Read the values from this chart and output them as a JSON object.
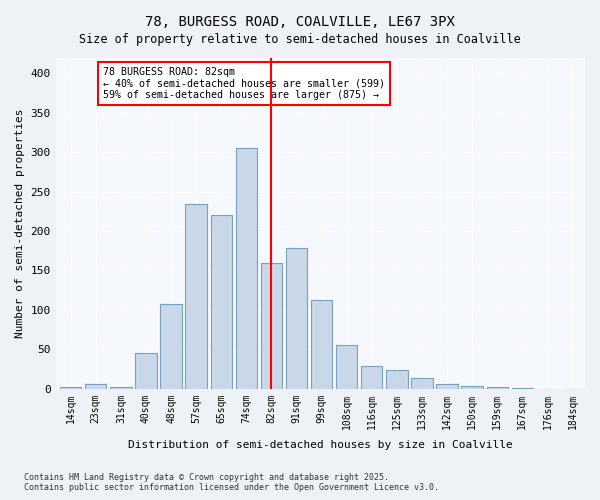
{
  "title1": "78, BURGESS ROAD, COALVILLE, LE67 3PX",
  "title2": "Size of property relative to semi-detached houses in Coalville",
  "xlabel": "Distribution of semi-detached houses by size in Coalville",
  "ylabel": "Number of semi-detached properties",
  "footnote": "Contains HM Land Registry data © Crown copyright and database right 2025.\nContains public sector information licensed under the Open Government Licence v3.0.",
  "bin_labels": [
    "14sqm",
    "23sqm",
    "31sqm",
    "40sqm",
    "48sqm",
    "57sqm",
    "65sqm",
    "74sqm",
    "82sqm",
    "91sqm",
    "99sqm",
    "108sqm",
    "116sqm",
    "125sqm",
    "133sqm",
    "142sqm",
    "150sqm",
    "159sqm",
    "167sqm",
    "176sqm",
    "184sqm"
  ],
  "bar_values": [
    2,
    6,
    2,
    45,
    108,
    234,
    220,
    305,
    160,
    178,
    112,
    55,
    29,
    24,
    14,
    6,
    3,
    2,
    1,
    0,
    0
  ],
  "bar_color": "#c8d8e8",
  "bar_edge_color": "#7aa0be",
  "vline_x": 8,
  "vline_color": "red",
  "annotation_text": "78 BURGESS ROAD: 82sqm\n← 40% of semi-detached houses are smaller (599)\n59% of semi-detached houses are larger (875) →",
  "annotation_box_color": "white",
  "annotation_box_edge": "red",
  "ylim": [
    0,
    420
  ],
  "yticks": [
    0,
    50,
    100,
    150,
    200,
    250,
    300,
    350,
    400
  ],
  "bg_color": "#eef2f7",
  "plot_bg_color": "#f5f8fc"
}
